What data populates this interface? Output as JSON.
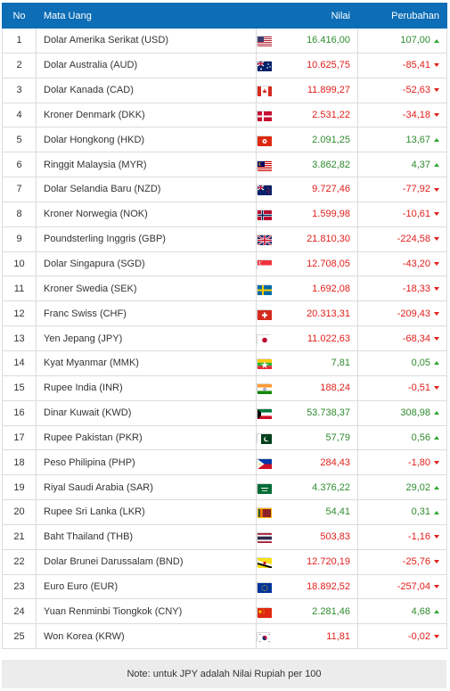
{
  "table": {
    "headers": {
      "no": "No",
      "name": "Mata Uang",
      "value": "Nilai",
      "change": "Perubahan"
    },
    "rows": [
      {
        "no": "1",
        "name": "Dolar Amerika Serikat (USD)",
        "value": "16.416,00",
        "change": "107,00",
        "dir": "up",
        "flag": "us-flag-icon"
      },
      {
        "no": "2",
        "name": "Dolar Australia (AUD)",
        "value": "10.625,75",
        "change": "-85,41",
        "dir": "down",
        "flag": "au-flag-icon"
      },
      {
        "no": "3",
        "name": "Dolar Kanada (CAD)",
        "value": "11.899,27",
        "change": "-52,63",
        "dir": "down",
        "flag": "ca-flag-icon"
      },
      {
        "no": "4",
        "name": "Kroner Denmark (DKK)",
        "value": "2.531,22",
        "change": "-34,18",
        "dir": "down",
        "flag": "dk-flag-icon"
      },
      {
        "no": "5",
        "name": "Dolar Hongkong (HKD)",
        "value": "2.091,25",
        "change": "13,67",
        "dir": "up",
        "flag": "hk-flag-icon"
      },
      {
        "no": "6",
        "name": "Ringgit Malaysia (MYR)",
        "value": "3.862,82",
        "change": "4,37",
        "dir": "up",
        "flag": "my-flag-icon"
      },
      {
        "no": "7",
        "name": "Dolar Selandia Baru (NZD)",
        "value": "9.727,46",
        "change": "-77,92",
        "dir": "down",
        "flag": "nz-flag-icon"
      },
      {
        "no": "8",
        "name": "Kroner Norwegia (NOK)",
        "value": "1.599,98",
        "change": "-10,61",
        "dir": "down",
        "flag": "no-flag-icon"
      },
      {
        "no": "9",
        "name": "Poundsterling Inggris (GBP)",
        "value": "21.810,30",
        "change": "-224,58",
        "dir": "down",
        "flag": "gb-flag-icon"
      },
      {
        "no": "10",
        "name": "Dolar Singapura (SGD)",
        "value": "12.708,05",
        "change": "-43,20",
        "dir": "down",
        "flag": "sg-flag-icon"
      },
      {
        "no": "11",
        "name": "Kroner Swedia (SEK)",
        "value": "1.692,08",
        "change": "-18,33",
        "dir": "down",
        "flag": "se-flag-icon"
      },
      {
        "no": "12",
        "name": "Franc Swiss (CHF)",
        "value": "20.313,31",
        "change": "-209,43",
        "dir": "down",
        "flag": "ch-flag-icon"
      },
      {
        "no": "13",
        "name": "Yen Jepang (JPY)",
        "value": "11.022,63",
        "change": "-68,34",
        "dir": "down",
        "flag": "jp-flag-icon"
      },
      {
        "no": "14",
        "name": "Kyat Myanmar (MMK)",
        "value": "7,81",
        "change": "0,05",
        "dir": "up",
        "flag": "mm-flag-icon"
      },
      {
        "no": "15",
        "name": "Rupee India (INR)",
        "value": "188,24",
        "change": "-0,51",
        "dir": "down",
        "flag": "in-flag-icon"
      },
      {
        "no": "16",
        "name": "Dinar Kuwait (KWD)",
        "value": "53.738,37",
        "change": "308,98",
        "dir": "up",
        "flag": "kw-flag-icon"
      },
      {
        "no": "17",
        "name": "Rupee Pakistan (PKR)",
        "value": "57,79",
        "change": "0,56",
        "dir": "up",
        "flag": "pk-flag-icon"
      },
      {
        "no": "18",
        "name": "Peso Philipina (PHP)",
        "value": "284,43",
        "change": "-1,80",
        "dir": "down",
        "flag": "ph-flag-icon"
      },
      {
        "no": "19",
        "name": "Riyal Saudi Arabia (SAR)",
        "value": "4.376,22",
        "change": "29,02",
        "dir": "up",
        "flag": "sa-flag-icon"
      },
      {
        "no": "20",
        "name": "Rupee Sri Lanka (LKR)",
        "value": "54,41",
        "change": "0,31",
        "dir": "up",
        "flag": "lk-flag-icon"
      },
      {
        "no": "21",
        "name": "Baht Thailand (THB)",
        "value": "503,83",
        "change": "-1,16",
        "dir": "down",
        "flag": "th-flag-icon"
      },
      {
        "no": "22",
        "name": "Dolar Brunei Darussalam (BND)",
        "value": "12.720,19",
        "change": "-25,76",
        "dir": "down",
        "flag": "bn-flag-icon"
      },
      {
        "no": "23",
        "name": "Euro Euro (EUR)",
        "value": "18.892,52",
        "change": "-257,04",
        "dir": "down",
        "flag": "eu-flag-icon"
      },
      {
        "no": "24",
        "name": "Yuan Renminbi Tiongkok (CNY)",
        "value": "2.281,46",
        "change": "4,68",
        "dir": "up",
        "flag": "cn-flag-icon"
      },
      {
        "no": "25",
        "name": "Won Korea (KRW)",
        "value": "11,81",
        "change": "-0,02",
        "dir": "down",
        "flag": "kr-flag-icon"
      }
    ]
  },
  "note": "Note: untuk JPY adalah Nilai Rupiah per 100",
  "colors": {
    "header_bg": "#0d6db6",
    "up": "#2e8b2e",
    "down": "#e0201c",
    "note_bg": "#ececec"
  }
}
